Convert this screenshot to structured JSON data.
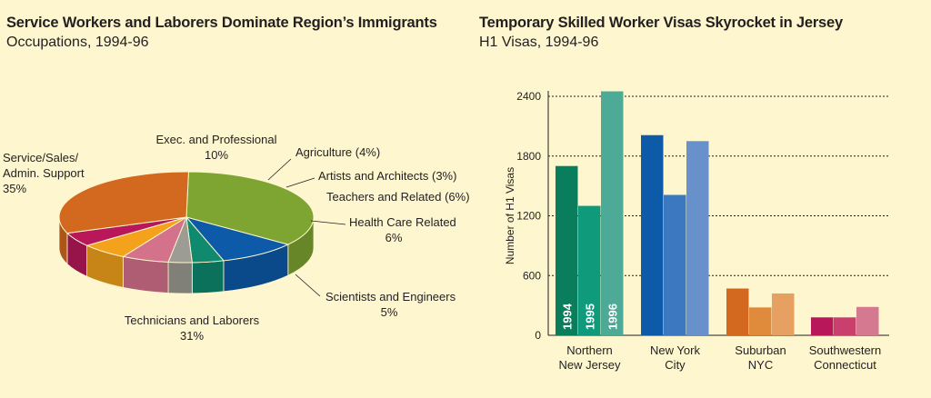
{
  "colors": {
    "background": "#fdf6cf",
    "service": "#7ea431",
    "exec": "#0c5aa8",
    "agriculture": "#0f8a6e",
    "artists": "#9c9c94",
    "teachers": "#d4718b",
    "health": "#f4a21c",
    "scientists": "#b8185a",
    "technicians": "#d2691e"
  },
  "chart_data": [
    {
      "type": "pie",
      "title": "Service Workers and Laborers Dominate Region’s Immigrants",
      "subtitle": "Occupations, 1994-96",
      "slices": [
        {
          "key": "service",
          "name": "Service/Sales/ Admin. Support",
          "label_lines": [
            "Service/Sales/",
            "Admin. Support",
            "35%"
          ],
          "value": 35
        },
        {
          "key": "exec",
          "name": "Exec. and Professional",
          "label_lines": [
            "Exec. and Professional",
            "10%"
          ],
          "value": 10
        },
        {
          "key": "agriculture",
          "name": "Agriculture",
          "label_lines": [
            "Agriculture (4%)"
          ],
          "value": 4
        },
        {
          "key": "artists",
          "name": "Artists and Architects",
          "label_lines": [
            "Artists and Architects (3%)"
          ],
          "value": 3
        },
        {
          "key": "teachers",
          "name": "Teachers and Related",
          "label_lines": [
            "Teachers and Related (6%)"
          ],
          "value": 6
        },
        {
          "key": "health",
          "name": "Health Care Related",
          "label_lines": [
            "Health Care Related",
            "6%"
          ],
          "value": 6
        },
        {
          "key": "scientists",
          "name": "Scientists and Engineers",
          "label_lines": [
            "Scientists and Engineers",
            "5%"
          ],
          "value": 5
        },
        {
          "key": "technicians",
          "name": "Technicians and Laborers",
          "label_lines": [
            "Technicians and Laborers",
            "31%"
          ],
          "value": 31
        }
      ]
    },
    {
      "type": "bar",
      "title": "Temporary Skilled Worker Visas Skyrocket in Jersey",
      "subtitle": "H1 Visas, 1994-96",
      "ylabel": "Number of H1 Visas",
      "ylim": [
        0,
        2400
      ],
      "yticks": [
        "0",
        "600",
        "1200",
        "1800",
        "2400"
      ],
      "grid": true,
      "categories": [
        {
          "lines": [
            "Northern",
            "New Jersey"
          ],
          "values": [
            1700,
            1300,
            2450
          ],
          "colors": [
            "#0a7d5d",
            "#0f9a7c",
            "#4daa96"
          ]
        },
        {
          "lines": [
            "New York",
            "City"
          ],
          "values": [
            2010,
            1410,
            1950
          ],
          "colors": [
            "#0c5aa8",
            "#3b78bf",
            "#6890ca"
          ]
        },
        {
          "lines": [
            "Suburban",
            "NYC"
          ],
          "values": [
            470,
            280,
            420
          ],
          "colors": [
            "#d2691e",
            "#e08a3c",
            "#e6a061"
          ]
        },
        {
          "lines": [
            "Southwestern",
            "Connecticut"
          ],
          "values": [
            180,
            180,
            285
          ],
          "colors": [
            "#b8185a",
            "#c9406e",
            "#d47990"
          ]
        }
      ],
      "series": [
        {
          "name": "1994"
        },
        {
          "name": "1995"
        },
        {
          "name": "1996"
        }
      ]
    }
  ]
}
